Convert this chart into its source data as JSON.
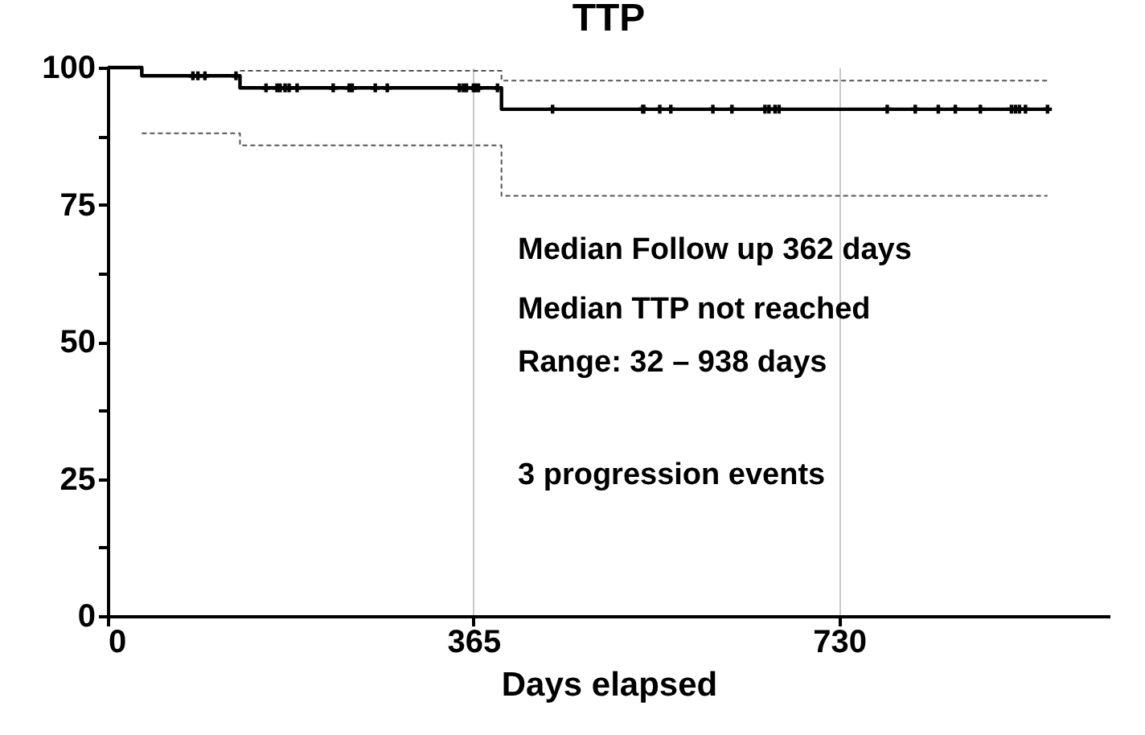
{
  "chart_data": {
    "type": "step",
    "title": "TTP",
    "xlabel": "Days elapsed",
    "annotations": [
      "Median Follow up 362 days",
      "Median TTP not reached",
      "Range: 32 – 938 days",
      "3 progression events"
    ],
    "xlim": [
      0,
      1000
    ],
    "xticks": [
      0,
      365,
      730
    ],
    "ylim": [
      0,
      100
    ],
    "yticks": [
      0,
      {
        "value": 12.5,
        "label": null
      },
      25,
      {
        "value": 37.5,
        "label": null
      },
      50,
      {
        "value": 62.5,
        "label": null
      },
      75,
      {
        "value": 87.5,
        "label": null
      },
      100
    ],
    "grid": "x",
    "series": [
      {
        "type": "step",
        "color": "#000000",
        "line_style": "solid",
        "x": [
          0,
          34,
          132,
          393,
          938
        ],
        "values": [
          100,
          98.5,
          96.3,
          92.4,
          92.4
        ]
      },
      {
        "type": "step",
        "color": "#555555",
        "line_style": "dashed",
        "x": [
          132,
          393,
          938
        ],
        "values": [
          99.4,
          97.6,
          97.6
        ]
      },
      {
        "type": "step",
        "color": "#555555",
        "line_style": "dashed",
        "x": [
          34,
          132,
          393,
          938
        ],
        "values": [
          88,
          85.8,
          76.6,
          76.6
        ]
      },
      {
        "type": "scatter",
        "color": "#000000",
        "marker": "cross",
        "x": [
          85,
          90,
          97,
          128,
          158,
          169,
          172,
          177,
          181,
          189,
          225,
          241,
          244,
          267,
          279,
          351,
          355,
          358,
          365,
          367,
          370,
          389,
          444,
          534,
          535,
          551,
          562,
          604,
          623,
          656,
          660,
          666,
          670,
          778,
          806,
          829,
          846,
          871,
          902,
          906,
          910,
          916,
          938
        ],
        "values": [
          98.5,
          98.5,
          98.5,
          98.5,
          96.3,
          96.3,
          96.3,
          96.3,
          96.3,
          96.3,
          96.3,
          96.3,
          96.3,
          96.3,
          96.3,
          96.3,
          96.3,
          96.3,
          96.3,
          96.3,
          96.3,
          96.3,
          92.4,
          92.4,
          92.4,
          92.4,
          92.4,
          92.4,
          92.4,
          92.4,
          92.4,
          92.4,
          92.4,
          92.4,
          92.4,
          92.4,
          92.4,
          92.4,
          92.4,
          92.4,
          92.4,
          92.4,
          92.4
        ]
      }
    ]
  }
}
